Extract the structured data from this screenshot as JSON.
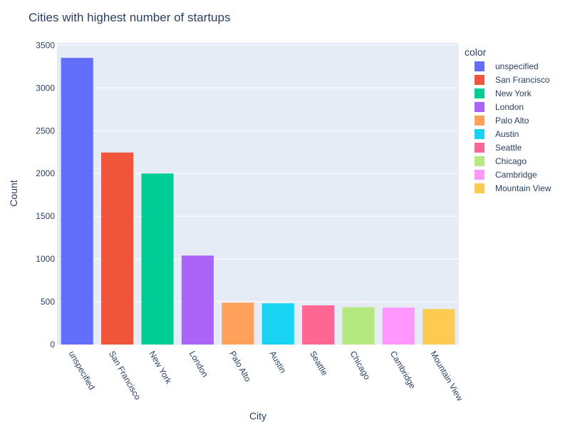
{
  "chart_data": {
    "type": "bar",
    "title": "Cities with highest number of startups",
    "xlabel": "City",
    "ylabel": "Count",
    "categories": [
      "unspecified",
      "San Francisco",
      "New York",
      "London",
      "Palo Alto",
      "Austin",
      "Seattle",
      "Chicago",
      "Cambridge",
      "Mountain View"
    ],
    "values": [
      3352,
      2245,
      2000,
      1040,
      490,
      482,
      458,
      436,
      432,
      415
    ],
    "colors": [
      "#636efa",
      "#EF553B",
      "#00cc96",
      "#ab63fa",
      "#FFA15A",
      "#19d3f3",
      "#FF6692",
      "#B6E880",
      "#FF97FF",
      "#FECB52"
    ],
    "ylim": [
      0,
      3528
    ],
    "yticks": [
      0,
      500,
      1000,
      1500,
      2000,
      2500,
      3000,
      3500
    ],
    "grid": true,
    "legend": {
      "title": "color",
      "placement": "right",
      "entries": [
        "unspecified",
        "San Francisco",
        "New York",
        "London",
        "Palo Alto",
        "Austin",
        "Seattle",
        "Chicago",
        "Cambridge",
        "Mountain View"
      ]
    },
    "background": "#E5ECF6",
    "text_color": "#2a3f5f"
  }
}
